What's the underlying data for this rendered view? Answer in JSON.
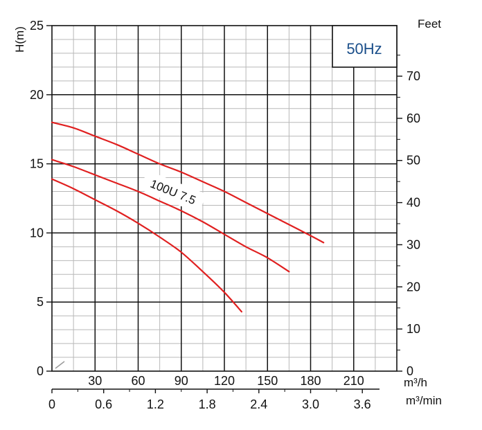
{
  "chart_data": {
    "type": "line",
    "frequency_label": "50Hz",
    "curve_label": "100U 7.5",
    "ylabel": "H(m)",
    "ylabel_right": "Feet",
    "xlabel_flow_h": "m³/h",
    "xlabel_flow_min": "m³/min",
    "xlim": [
      0,
      240
    ],
    "ylim": [
      0,
      25
    ],
    "y2lim": [
      0,
      82
    ],
    "grid": true,
    "x_ticks_m3h": [
      "30",
      "60",
      "90",
      "120",
      "150",
      "180",
      "210"
    ],
    "x_ticks_m3min": [
      "0",
      "0.6",
      "1.2",
      "1.8",
      "2.4",
      "3.0",
      "3.6"
    ],
    "y_ticks_m": [
      "0",
      "5",
      "10",
      "15",
      "20",
      "25"
    ],
    "y_ticks_feet": [
      "0",
      "10",
      "20",
      "30",
      "40",
      "50",
      "60",
      "70"
    ],
    "series": [
      {
        "color": "#e02020",
        "x": [
          0,
          15,
          30,
          45,
          60,
          75,
          90,
          105,
          120,
          135,
          150,
          165,
          180,
          189
        ],
        "y": [
          18.0,
          17.6,
          17.0,
          16.4,
          15.7,
          15.0,
          14.4,
          13.7,
          13.0,
          12.2,
          11.4,
          10.6,
          9.8,
          9.3
        ]
      },
      {
        "color": "#e02020",
        "x": [
          0,
          15,
          30,
          45,
          60,
          75,
          90,
          105,
          120,
          135,
          150,
          165
        ],
        "y": [
          15.3,
          14.8,
          14.2,
          13.6,
          13.0,
          12.3,
          11.6,
          10.8,
          9.9,
          9.0,
          8.2,
          7.2
        ]
      },
      {
        "color": "#e02020",
        "x": [
          0,
          15,
          30,
          45,
          60,
          75,
          90,
          105,
          120,
          132
        ],
        "y": [
          13.9,
          13.2,
          12.4,
          11.6,
          10.7,
          9.7,
          8.6,
          7.2,
          5.7,
          4.3
        ]
      }
    ]
  }
}
